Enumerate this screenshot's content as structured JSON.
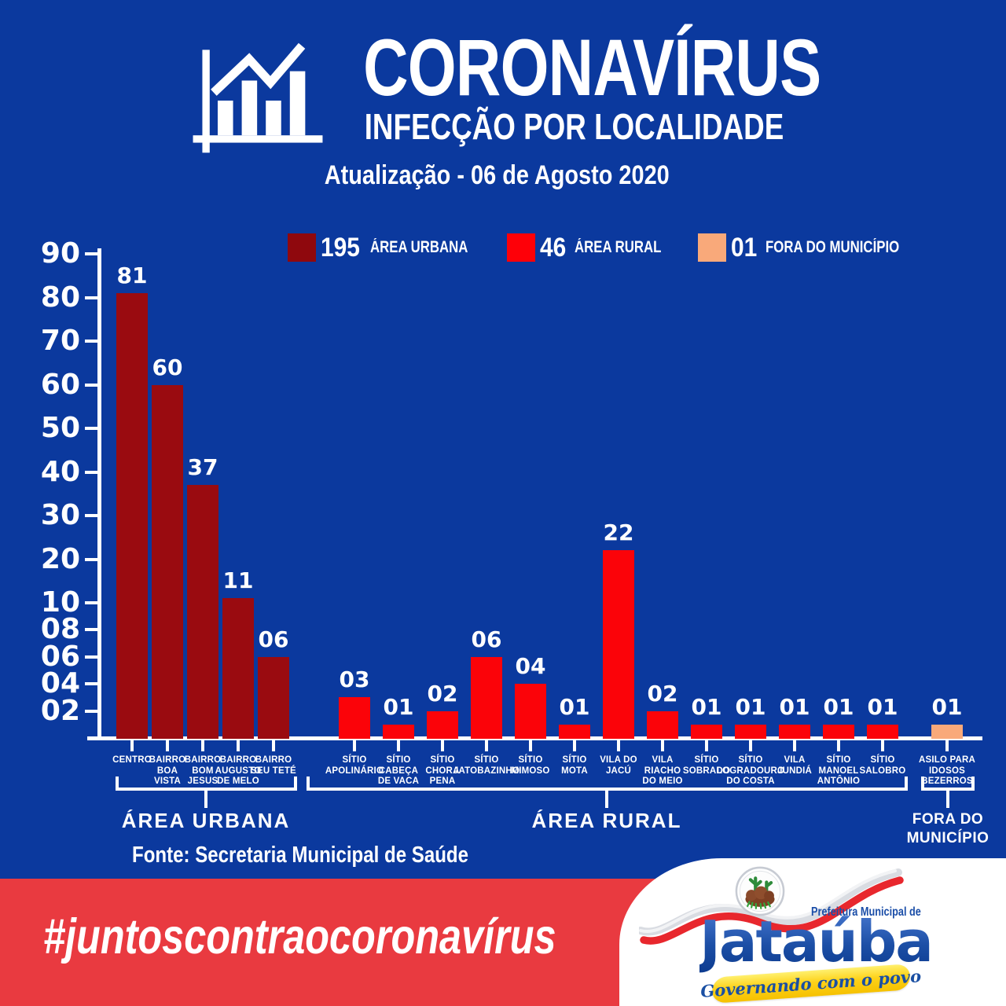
{
  "header": {
    "title": "CORONAVÍRUS",
    "subtitle": "INFECÇÃO POR LOCALIDADE",
    "update": "Atualização - 06 de Agosto 2020"
  },
  "legend": [
    {
      "count": "195",
      "label": "ÁREA URBANA",
      "color": "#8f080d"
    },
    {
      "count": "46",
      "label": "ÁREA RURAL",
      "color": "#fe0008"
    },
    {
      "count": "01",
      "label": "FORA DO MUNICÍPIO",
      "color": "#f9a97a"
    }
  ],
  "chart_data": {
    "type": "bar",
    "title": "CORONAVÍRUS - INFECÇÃO POR LOCALIDADE",
    "subtitle": "Atualização - 06 de Agosto 2020",
    "ylabel": "",
    "xlabel": "",
    "ylim": [
      0,
      90
    ],
    "grid": false,
    "y_axis": {
      "ticks": [
        "90",
        "80",
        "70",
        "60",
        "50",
        "40",
        "30",
        "20",
        "10",
        "08",
        "06",
        "04",
        "02"
      ],
      "nonlinear_below_10": true
    },
    "categories": [
      "CENTRO",
      "BAIRRO\nBOA\nVISTA",
      "BAIRRO\nBOM\nJESUS",
      "BAIRRO\nAUGUSTO\nDE MELO",
      "BAIRRO\nSEU TETÉ",
      "SÍTIO\nAPOLINÁRIO",
      "SÍTIO\nCABEÇA\nDE VACA",
      "SÍTIO\nCHORA\nPENA",
      "SÍTIO\nJATOBAZINHO",
      "SÍTIO\nMIMOSO",
      "SÍTIO\nMOTA",
      "VILA DO\nJACÚ",
      "VILA\nRIACHO\nDO MEIO",
      "SÍTIO\nSOBRADO",
      "SÍTIO\nLOGRADOURO\nDO COSTA",
      "VILA\nJUNDIÁ",
      "SÍTIO\nMANOEL\nANTÔNIO",
      "SÍTIO\nSALOBRO",
      "ASILO PARA\nIDOSOS\nBEZERROS"
    ],
    "values": [
      81,
      60,
      37,
      11,
      6,
      3,
      1,
      2,
      6,
      4,
      1,
      22,
      2,
      1,
      1,
      1,
      1,
      1,
      1
    ],
    "value_labels": [
      "81",
      "60",
      "37",
      "11",
      "06",
      "03",
      "01",
      "02",
      "06",
      "04",
      "01",
      "22",
      "02",
      "01",
      "01",
      "01",
      "01",
      "01",
      "01"
    ],
    "groups": [
      {
        "label": "ÁREA URBANA",
        "from": 0,
        "to": 4,
        "total": 195,
        "color": "#9a0b10"
      },
      {
        "label": "ÁREA RURAL",
        "from": 5,
        "to": 17,
        "total": 46,
        "color": "#fb0309"
      },
      {
        "label": "FORA DO\nMUNICÍPIO",
        "from": 18,
        "to": 18,
        "total": 1,
        "color": "#f9a97a"
      }
    ],
    "legend_position": "top"
  },
  "fonte": "Fonte: Secretaria Municipal de Saúde",
  "banner": {
    "hashtag": "#juntoscontraocoronavírus",
    "color": "#e93a40"
  },
  "logo": {
    "line1": "Prefeitura Municipal de",
    "name": "Jataúba",
    "motto": "Governando com o povo"
  },
  "colors": {
    "background": "#0b399e",
    "urban_bar": "#9a0b10",
    "rural_bar": "#fb0309",
    "outside_bar": "#f9a97a",
    "banner_red": "#e93a40",
    "text": "#ffffff",
    "logo_blue": "#1b4ea8",
    "ribbon_yellow": "#fdd21a"
  }
}
